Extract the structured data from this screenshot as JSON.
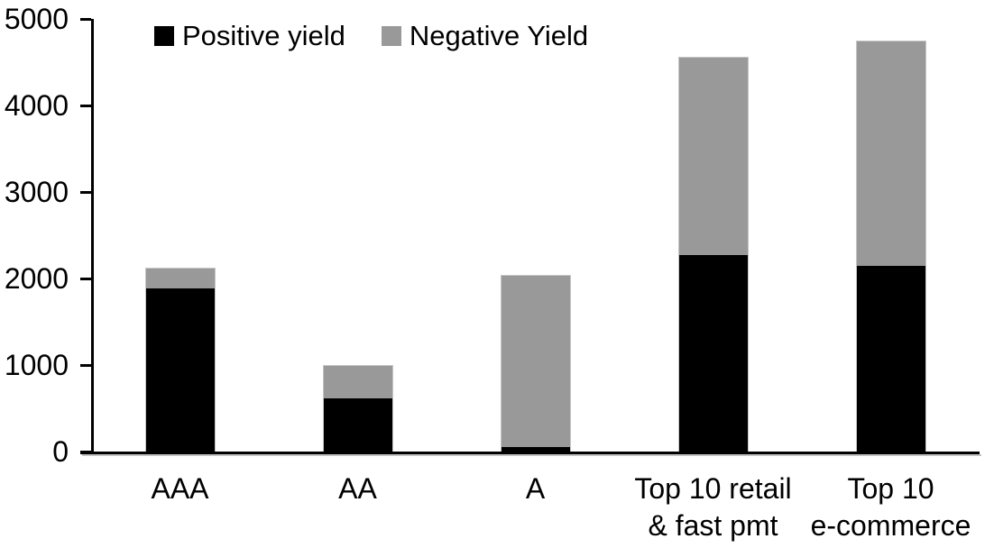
{
  "chart_data": {
    "type": "bar",
    "stacked": true,
    "title": "",
    "xlabel": "",
    "ylabel": "",
    "categories": [
      "AAA",
      "AA",
      "A",
      "Top 10 retail\n& fast pmt",
      "Top 10\ne-commerce"
    ],
    "series": [
      {
        "name": "Positive yield",
        "color": "#000000",
        "values": [
          1890,
          620,
          50,
          2280,
          2150
        ]
      },
      {
        "name": "Negative Yield",
        "color": "#999999",
        "values": [
          230,
          380,
          1990,
          2280,
          2600
        ]
      }
    ],
    "ylim": [
      0,
      5000
    ],
    "yticks": [
      0,
      1000,
      2000,
      3000,
      4000,
      5000
    ],
    "grid": false,
    "legend_position": "top",
    "colors": {
      "axis": "#000000",
      "bar_border": "#c6c6c6",
      "axis_shadow": "#c4c4c4"
    }
  }
}
